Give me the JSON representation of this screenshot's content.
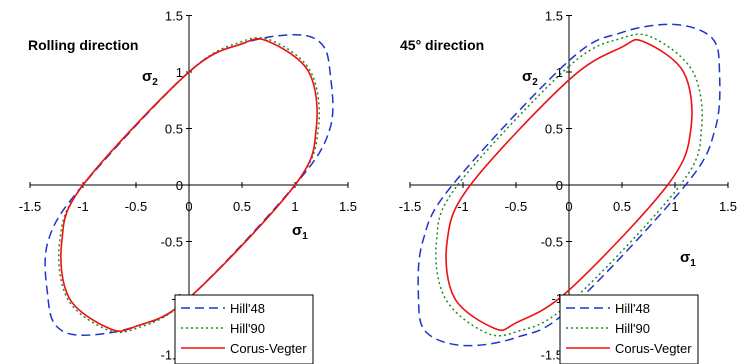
{
  "chart_data": [
    {
      "type": "line",
      "title": "Rolling direction",
      "xlabel": "σ1",
      "ylabel": "σ2",
      "xlim": [
        -1.5,
        1.5
      ],
      "ylim": [
        -1.5,
        1.5
      ],
      "xticks": [
        "-1.5",
        "-1",
        "-0.5",
        "0",
        "0.5",
        "1",
        "1.5"
      ],
      "yticks": [
        "1.5",
        "1",
        "0.5",
        "0",
        "-0.5",
        "-1",
        "-1.5"
      ],
      "grid": false,
      "legend_position": "bottom-right",
      "series": [
        {
          "name": "Hill'48",
          "style": "dashed",
          "color": "#2233cc",
          "x": [
            0,
            0.5,
            1.0,
            1.25,
            1.33,
            1.33,
            1.0,
            0,
            -0.5,
            -1.0,
            -1.25,
            -1.33,
            -1.33,
            -1.0
          ],
          "y": [
            1.0,
            1.25,
            1.33,
            1.25,
            1.0,
            0.5,
            0,
            -1.0,
            -1.25,
            -1.33,
            -1.25,
            -1.0,
            -0.5,
            0
          ]
        },
        {
          "name": "Hill'90",
          "style": "dotted",
          "color": "#228822",
          "x": [
            0,
            0.5,
            0.8,
            1.15,
            1.22,
            1.0,
            0,
            -0.5,
            -0.8,
            -1.15,
            -1.22,
            -1.0
          ],
          "y": [
            1.0,
            1.27,
            1.27,
            1.0,
            0.5,
            0,
            -1.0,
            -1.27,
            -1.27,
            -1.0,
            -0.5,
            0
          ]
        },
        {
          "name": "Corus-Vegter",
          "style": "solid",
          "color": "#ee1111",
          "x": [
            0,
            0.5,
            0.75,
            1.13,
            1.2,
            1.0,
            0,
            -0.5,
            -0.75,
            -1.13,
            -1.2,
            -1.0
          ],
          "y": [
            1.0,
            1.25,
            1.27,
            1.0,
            0.5,
            0,
            -1.0,
            -1.25,
            -1.27,
            -1.0,
            -0.5,
            0
          ]
        }
      ]
    },
    {
      "type": "line",
      "title": "45° direction",
      "xlabel": "σ1",
      "ylabel": "σ2",
      "xlim": [
        -1.5,
        1.5
      ],
      "ylim": [
        -1.5,
        1.5
      ],
      "xticks": [
        "-1.5",
        "-1",
        "-0.5",
        "0",
        "0.5",
        "1",
        "1.5"
      ],
      "yticks": [
        "1.5",
        "1",
        "0.5",
        "0",
        "-0.5",
        "-1",
        "-1.5"
      ],
      "grid": false,
      "legend_position": "bottom-right",
      "series": [
        {
          "name": "Hill'48",
          "style": "dashed",
          "color": "#2233cc",
          "x": [
            0,
            0.5,
            1.0,
            1.35,
            1.42,
            1.38,
            1.1,
            0,
            -0.5,
            -1.0,
            -1.35,
            -1.42,
            -1.38,
            -1.1
          ],
          "y": [
            1.1,
            1.35,
            1.42,
            1.3,
            1.0,
            0.5,
            0,
            -1.1,
            -1.35,
            -1.42,
            -1.3,
            -1.0,
            -0.5,
            0
          ]
        },
        {
          "name": "Hill'90",
          "style": "dotted",
          "color": "#228822",
          "x": [
            0,
            0.5,
            0.8,
            1.17,
            1.25,
            1.05,
            0,
            -0.5,
            -0.8,
            -1.17,
            -1.25,
            -1.05
          ],
          "y": [
            1.05,
            1.3,
            1.3,
            1.0,
            0.5,
            0,
            -1.05,
            -1.3,
            -1.3,
            -1.0,
            -0.5,
            0
          ]
        },
        {
          "name": "Corus-Vegter",
          "style": "solid",
          "color": "#ee1111",
          "x": [
            0,
            0.5,
            0.7,
            1.08,
            1.15,
            0.93,
            0,
            -0.5,
            -0.7,
            -1.08,
            -1.15,
            -0.93
          ],
          "y": [
            0.93,
            1.22,
            1.27,
            1.0,
            0.5,
            0,
            -0.93,
            -1.22,
            -1.27,
            -1.0,
            -0.5,
            0
          ]
        }
      ]
    }
  ]
}
